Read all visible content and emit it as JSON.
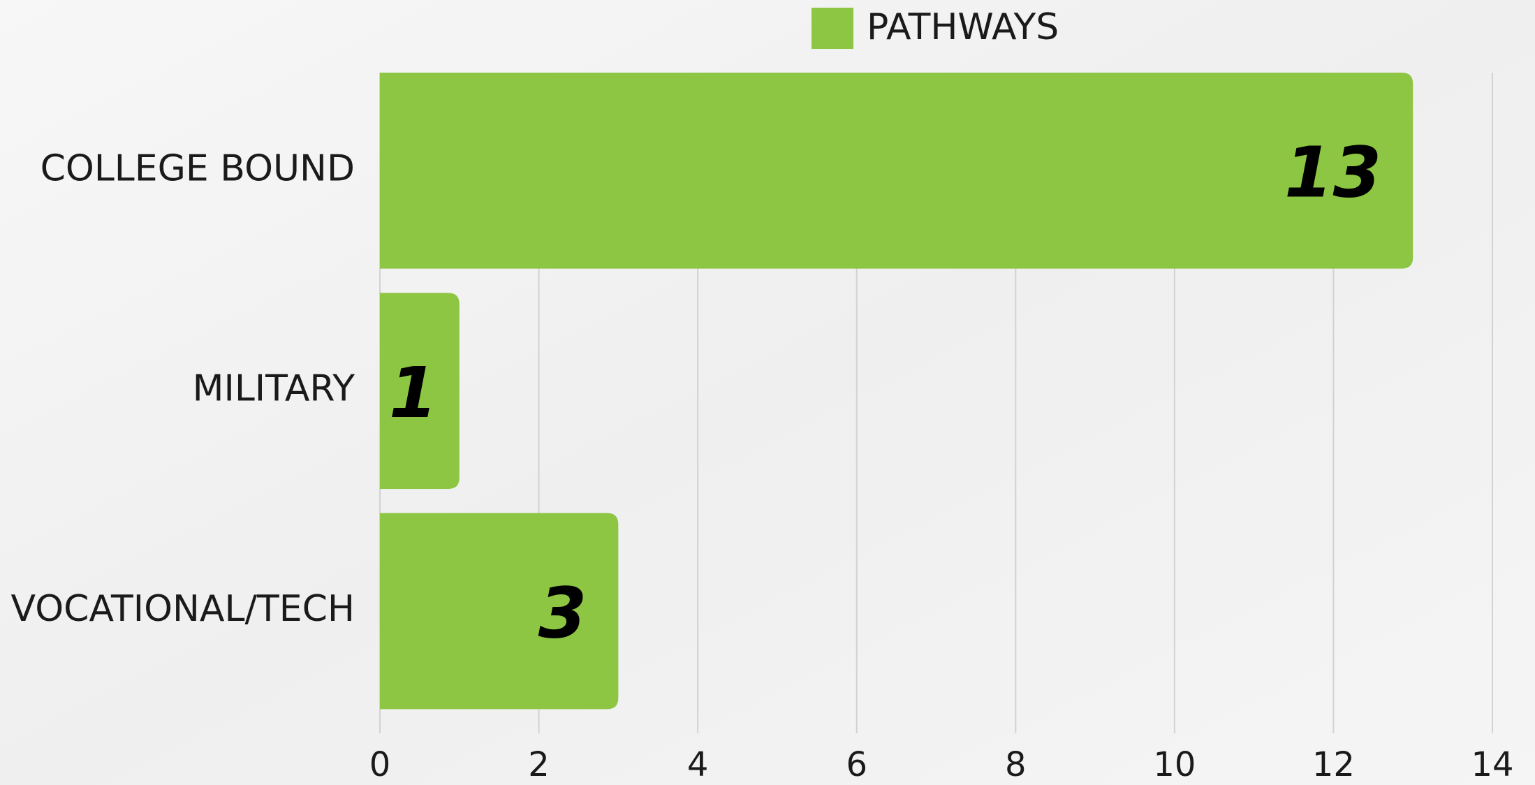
{
  "chart_data": {
    "type": "bar",
    "orientation": "horizontal",
    "categories": [
      "COLLEGE BOUND",
      "MILITARY",
      "VOCATIONAL/TECH"
    ],
    "series": [
      {
        "name": "PATHWAYS",
        "color": "#8dc642",
        "values": [
          13,
          1,
          3
        ]
      }
    ],
    "xlim": [
      0,
      14
    ],
    "xticks": [
      0,
      2,
      4,
      6,
      8,
      10,
      12,
      14
    ],
    "grid": true,
    "legend": "top"
  }
}
